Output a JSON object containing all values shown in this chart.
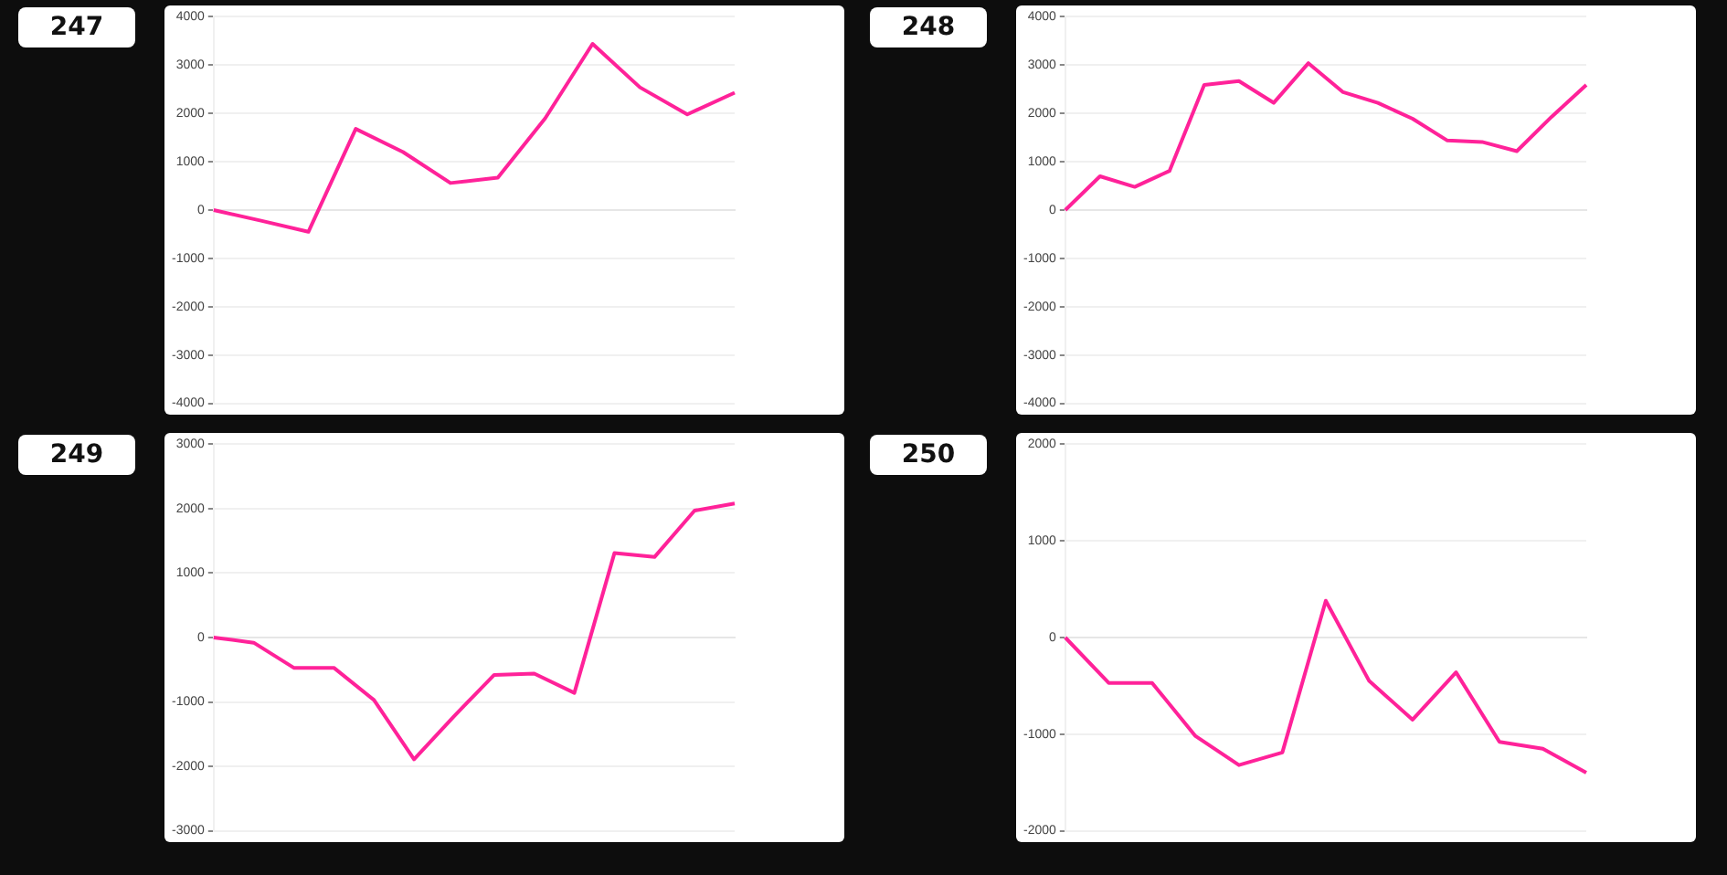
{
  "chart_data": [
    {
      "type": "line",
      "title": "247",
      "categories": [
        null,
        null,
        null,
        null,
        null,
        null,
        null,
        null,
        null,
        null,
        null,
        null
      ],
      "series": [
        {
          "color": "#ff2299",
          "values": [
            0,
            -220,
            -450,
            1680,
            1200,
            560,
            670,
            1900,
            3440,
            2540,
            1980,
            2430
          ]
        }
      ],
      "ylim": [
        -4000,
        4000
      ],
      "yticks": [
        -4000,
        -3000,
        -2000,
        -1000,
        0,
        1000,
        2000,
        3000,
        4000
      ],
      "grid": "y",
      "tick_labels": "y",
      "legend": false
    },
    {
      "type": "line",
      "title": "248",
      "categories": [
        null,
        null,
        null,
        null,
        null,
        null,
        null,
        null,
        null,
        null,
        null,
        null,
        null,
        null,
        null,
        null
      ],
      "series": [
        {
          "color": "#ff2299",
          "values": [
            0,
            700,
            480,
            810,
            2590,
            2670,
            2220,
            3040,
            2440,
            2220,
            1890,
            1440,
            1410,
            1220,
            1930,
            2590
          ]
        }
      ],
      "ylim": [
        -4000,
        4000
      ],
      "yticks": [
        -4000,
        -3000,
        -2000,
        -1000,
        0,
        1000,
        2000,
        3000,
        4000
      ],
      "grid": "y",
      "tick_labels": "y",
      "legend": false
    },
    {
      "type": "line",
      "title": "249",
      "categories": [
        null,
        null,
        null,
        null,
        null,
        null,
        null,
        null,
        null,
        null,
        null,
        null,
        null,
        null
      ],
      "series": [
        {
          "color": "#ff2299",
          "values": [
            0,
            -80,
            -470,
            -470,
            -970,
            -1890,
            -1220,
            -580,
            -560,
            -860,
            1310,
            1250,
            1970,
            2080
          ]
        }
      ],
      "ylim": [
        -3000,
        3000
      ],
      "yticks": [
        -3000,
        -2000,
        -1000,
        0,
        1000,
        2000,
        3000
      ],
      "grid": "y",
      "tick_labels": "y",
      "legend": false
    },
    {
      "type": "line",
      "title": "250",
      "categories": [
        null,
        null,
        null,
        null,
        null,
        null,
        null,
        null,
        null,
        null,
        null,
        null,
        null
      ],
      "series": [
        {
          "color": "#ff2299",
          "values": [
            0,
            -470,
            -470,
            -1020,
            -1320,
            -1190,
            380,
            -450,
            -850,
            -360,
            -1080,
            -1150,
            -1400
          ]
        }
      ],
      "ylim": [
        -2000,
        2000
      ],
      "yticks": [
        -2000,
        -1000,
        0,
        1000,
        2000
      ],
      "grid": "y",
      "tick_labels": "y",
      "legend": false
    }
  ]
}
